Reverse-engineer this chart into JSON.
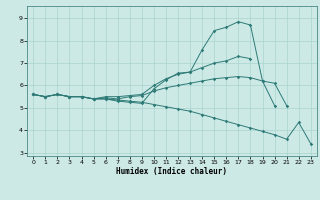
{
  "title": "",
  "xlabel": "Humidex (Indice chaleur)",
  "bg_color": "#cce9e6",
  "grid_color": "#aad4d0",
  "line_color": "#2d7a76",
  "xlim": [
    -0.5,
    23.5
  ],
  "ylim": [
    2.85,
    9.55
  ],
  "yticks": [
    3,
    4,
    5,
    6,
    7,
    8,
    9
  ],
  "xticks": [
    0,
    1,
    2,
    3,
    4,
    5,
    6,
    7,
    8,
    9,
    10,
    11,
    12,
    13,
    14,
    15,
    16,
    17,
    18,
    19,
    20,
    21,
    22,
    23
  ],
  "lines": [
    {
      "x": [
        0,
        1,
        2,
        3,
        4,
        5,
        6,
        7,
        8,
        9,
        10,
        11,
        12,
        13,
        14,
        15,
        16,
        17,
        18,
        19,
        20
      ],
      "y": [
        5.6,
        5.5,
        5.6,
        5.5,
        5.5,
        5.4,
        5.4,
        5.3,
        5.25,
        5.2,
        5.85,
        6.25,
        6.55,
        6.6,
        7.6,
        8.45,
        8.6,
        8.85,
        8.7,
        6.2,
        5.1
      ]
    },
    {
      "x": [
        0,
        1,
        2,
        3,
        4,
        5,
        6,
        7,
        8,
        9,
        10,
        11,
        12,
        13,
        14,
        15,
        16,
        17,
        18
      ],
      "y": [
        5.6,
        5.5,
        5.6,
        5.5,
        5.5,
        5.4,
        5.5,
        5.5,
        5.55,
        5.6,
        6.0,
        6.3,
        6.5,
        6.6,
        6.8,
        7.0,
        7.1,
        7.3,
        7.2
      ]
    },
    {
      "x": [
        0,
        1,
        2,
        3,
        4,
        5,
        6,
        7,
        8,
        9,
        10,
        11,
        12,
        13,
        14,
        15,
        16,
        17,
        18,
        19,
        20,
        21
      ],
      "y": [
        5.6,
        5.5,
        5.6,
        5.5,
        5.5,
        5.4,
        5.45,
        5.4,
        5.5,
        5.55,
        5.75,
        5.9,
        6.0,
        6.1,
        6.2,
        6.3,
        6.35,
        6.4,
        6.35,
        6.2,
        6.1,
        5.1
      ]
    },
    {
      "x": [
        0,
        1,
        2,
        3,
        4,
        5,
        6,
        7,
        8,
        9,
        10,
        11,
        12,
        13,
        14,
        15,
        16,
        17,
        18,
        19,
        20,
        21,
        22,
        23
      ],
      "y": [
        5.6,
        5.5,
        5.6,
        5.5,
        5.5,
        5.4,
        5.4,
        5.35,
        5.3,
        5.25,
        5.15,
        5.05,
        4.95,
        4.85,
        4.7,
        4.55,
        4.4,
        4.25,
        4.1,
        3.95,
        3.8,
        3.6,
        4.35,
        3.4
      ]
    }
  ]
}
